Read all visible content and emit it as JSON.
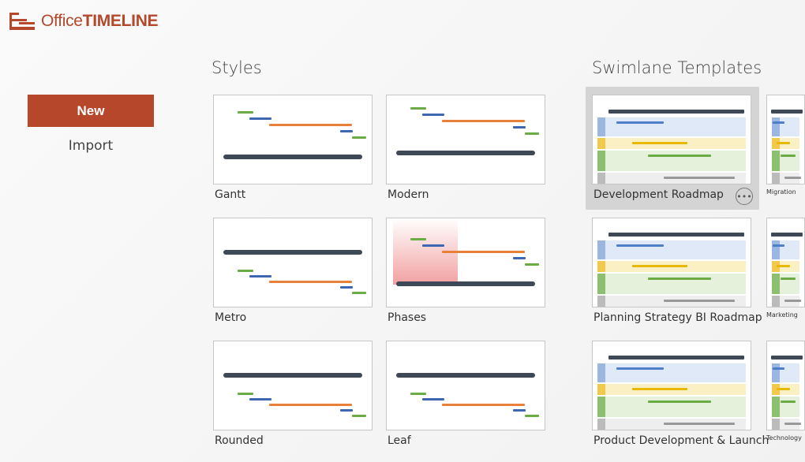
{
  "app": {
    "logo_prefix": "Office",
    "logo_suffix": "TIMELINE",
    "brand_color": "#b7472a"
  },
  "sidebar": {
    "new_label": "New",
    "import_label": "Import"
  },
  "styles": {
    "heading": "Styles",
    "items": [
      {
        "label": "Gantt"
      },
      {
        "label": "Modern"
      },
      {
        "label": "Metro"
      },
      {
        "label": "Phases"
      },
      {
        "label": "Rounded"
      },
      {
        "label": "Leaf"
      }
    ]
  },
  "swimlane": {
    "heading": "Swimlane Templates",
    "more_icon": "ellipsis-circle-icon",
    "items": [
      {
        "label": "Development Roadmap",
        "selected": true
      },
      {
        "label": "Migration"
      },
      {
        "label": "Planning Strategy BI Roadmap"
      },
      {
        "label": "Marketing"
      },
      {
        "label": "Product Development & Launch"
      },
      {
        "label": "Technology"
      }
    ]
  }
}
